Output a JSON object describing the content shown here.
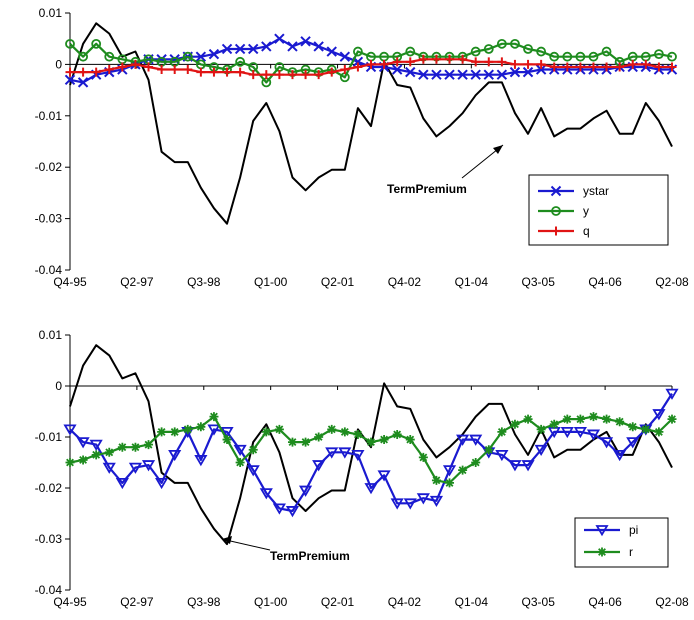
{
  "chart_data": [
    {
      "type": "line",
      "x_tick_labels": [
        "Q4-95",
        "Q2-97",
        "Q3-98",
        "Q1-00",
        "Q2-01",
        "Q4-02",
        "Q1-04",
        "Q3-05",
        "Q4-06",
        "Q2-08"
      ],
      "y_tick_labels": [
        "0.01",
        "0",
        "-0.01",
        "-0.02",
        "-0.03",
        "-0.04"
      ],
      "ylim": [
        -0.04,
        0.01
      ],
      "legend_position": "bottom-right",
      "annotation": "TermPremium",
      "series": [
        {
          "name": "",
          "color": "#000000",
          "marker": "none",
          "values": [
            -0.004,
            0.004,
            0.008,
            0.006,
            0.0015,
            0.0025,
            -0.003,
            -0.017,
            -0.019,
            -0.019,
            -0.024,
            -0.028,
            -0.031,
            -0.022,
            -0.011,
            -0.0075,
            -0.013,
            -0.022,
            -0.0245,
            -0.022,
            -0.0205,
            -0.0205,
            -0.0085,
            -0.012,
            0.0005,
            -0.004,
            -0.0045,
            -0.0105,
            -0.014,
            -0.012,
            -0.0095,
            -0.006,
            -0.0035,
            -0.0035,
            -0.0095,
            -0.0135,
            -0.0085,
            -0.014,
            -0.0125,
            -0.0125,
            -0.0105,
            -0.009,
            -0.0135,
            -0.0135,
            -0.0075,
            -0.011,
            -0.016
          ]
        },
        {
          "name": "ystar",
          "color": "#1a1ad0",
          "marker": "x",
          "values": [
            -0.003,
            -0.0035,
            -0.002,
            -0.0015,
            -0.001,
            0.0,
            0.001,
            0.001,
            0.001,
            0.0015,
            0.0015,
            0.002,
            0.003,
            0.003,
            0.003,
            0.0035,
            0.005,
            0.0035,
            0.0045,
            0.0035,
            0.0025,
            0.0015,
            0.0005,
            -0.0005,
            -0.0005,
            -0.001,
            -0.0015,
            -0.002,
            -0.002,
            -0.002,
            -0.002,
            -0.002,
            -0.002,
            -0.002,
            -0.0015,
            -0.0015,
            -0.001,
            -0.001,
            -0.001,
            -0.001,
            -0.001,
            -0.001,
            -0.0005,
            -0.0005,
            -0.0005,
            -0.001,
            -0.001
          ]
        },
        {
          "name": "y",
          "color": "#1e8c1e",
          "marker": "circle",
          "values": [
            0.004,
            0.0015,
            0.004,
            0.0015,
            0.001,
            0.0005,
            0.001,
            0.0005,
            0.0005,
            0.0015,
            0.0,
            -0.0005,
            -0.001,
            0.0005,
            -0.0005,
            -0.0035,
            -0.0005,
            -0.0015,
            -0.001,
            -0.0015,
            -0.001,
            -0.0025,
            0.0025,
            0.0015,
            0.0015,
            0.0015,
            0.0025,
            0.0015,
            0.0015,
            0.0015,
            0.0015,
            0.0025,
            0.003,
            0.004,
            0.004,
            0.003,
            0.0025,
            0.0015,
            0.0015,
            0.0015,
            0.0015,
            0.0025,
            0.0005,
            0.0015,
            0.0015,
            0.002,
            0.0015
          ]
        },
        {
          "name": "q",
          "color": "#e01414",
          "marker": "plus",
          "values": [
            -0.0015,
            -0.0015,
            -0.0015,
            -0.001,
            -0.0005,
            0.0,
            -0.0005,
            -0.001,
            -0.001,
            -0.001,
            -0.0015,
            -0.0015,
            -0.0015,
            -0.0015,
            -0.002,
            -0.002,
            -0.002,
            -0.002,
            -0.002,
            -0.002,
            -0.0015,
            -0.001,
            -0.0005,
            0.0,
            0.0,
            0.0005,
            0.0005,
            0.001,
            0.001,
            0.001,
            0.001,
            0.0005,
            0.0005,
            0.0005,
            0.0,
            0.0,
            0.0,
            -0.0005,
            -0.0005,
            -0.0005,
            -0.0005,
            -0.0005,
            -0.0005,
            0.0,
            0.0,
            -0.0005,
            -0.0005
          ]
        }
      ]
    },
    {
      "type": "line",
      "x_tick_labels": [
        "Q4-95",
        "Q2-97",
        "Q3-98",
        "Q1-00",
        "Q2-01",
        "Q4-02",
        "Q1-04",
        "Q3-05",
        "Q4-06",
        "Q2-08"
      ],
      "y_tick_labels": [
        "0.01",
        "0",
        "-0.01",
        "-0.02",
        "-0.03",
        "-0.04"
      ],
      "ylim": [
        -0.04,
        0.01
      ],
      "legend_position": "bottom-right",
      "annotation": "TermPremium",
      "series": [
        {
          "name": "",
          "color": "#000000",
          "marker": "none",
          "values": [
            -0.004,
            0.004,
            0.008,
            0.006,
            0.0015,
            0.0025,
            -0.003,
            -0.017,
            -0.019,
            -0.019,
            -0.024,
            -0.028,
            -0.031,
            -0.022,
            -0.011,
            -0.0075,
            -0.013,
            -0.022,
            -0.0245,
            -0.022,
            -0.0205,
            -0.0205,
            -0.0085,
            -0.012,
            0.0005,
            -0.004,
            -0.0045,
            -0.0105,
            -0.014,
            -0.012,
            -0.0095,
            -0.006,
            -0.0035,
            -0.0035,
            -0.0095,
            -0.0135,
            -0.0085,
            -0.014,
            -0.0125,
            -0.0125,
            -0.0105,
            -0.009,
            -0.0135,
            -0.0135,
            -0.0075,
            -0.011,
            -0.016
          ]
        },
        {
          "name": "pi",
          "color": "#1a1ad0",
          "marker": "triangle-down",
          "values": [
            -0.0085,
            -0.011,
            -0.0115,
            -0.016,
            -0.019,
            -0.016,
            -0.0155,
            -0.019,
            -0.0135,
            -0.009,
            -0.0145,
            -0.0085,
            -0.009,
            -0.0125,
            -0.0165,
            -0.021,
            -0.024,
            -0.0245,
            -0.0205,
            -0.0155,
            -0.013,
            -0.013,
            -0.0135,
            -0.02,
            -0.0175,
            -0.023,
            -0.023,
            -0.022,
            -0.0225,
            -0.0165,
            -0.0105,
            -0.0105,
            -0.013,
            -0.0135,
            -0.0155,
            -0.0155,
            -0.0125,
            -0.009,
            -0.009,
            -0.009,
            -0.0095,
            -0.011,
            -0.0135,
            -0.011,
            -0.0085,
            -0.0055,
            -0.0015
          ]
        },
        {
          "name": "r",
          "color": "#1e8c1e",
          "marker": "star",
          "values": [
            -0.015,
            -0.0145,
            -0.0135,
            -0.013,
            -0.012,
            -0.012,
            -0.0115,
            -0.009,
            -0.009,
            -0.0085,
            -0.008,
            -0.006,
            -0.0105,
            -0.015,
            -0.0125,
            -0.009,
            -0.0085,
            -0.011,
            -0.011,
            -0.01,
            -0.0085,
            -0.009,
            -0.0095,
            -0.011,
            -0.0105,
            -0.0095,
            -0.0105,
            -0.014,
            -0.0185,
            -0.019,
            -0.0165,
            -0.015,
            -0.0125,
            -0.009,
            -0.0075,
            -0.0065,
            -0.0085,
            -0.0075,
            -0.0065,
            -0.0065,
            -0.006,
            -0.0065,
            -0.007,
            -0.008,
            -0.0085,
            -0.009,
            -0.0065
          ]
        }
      ]
    }
  ]
}
